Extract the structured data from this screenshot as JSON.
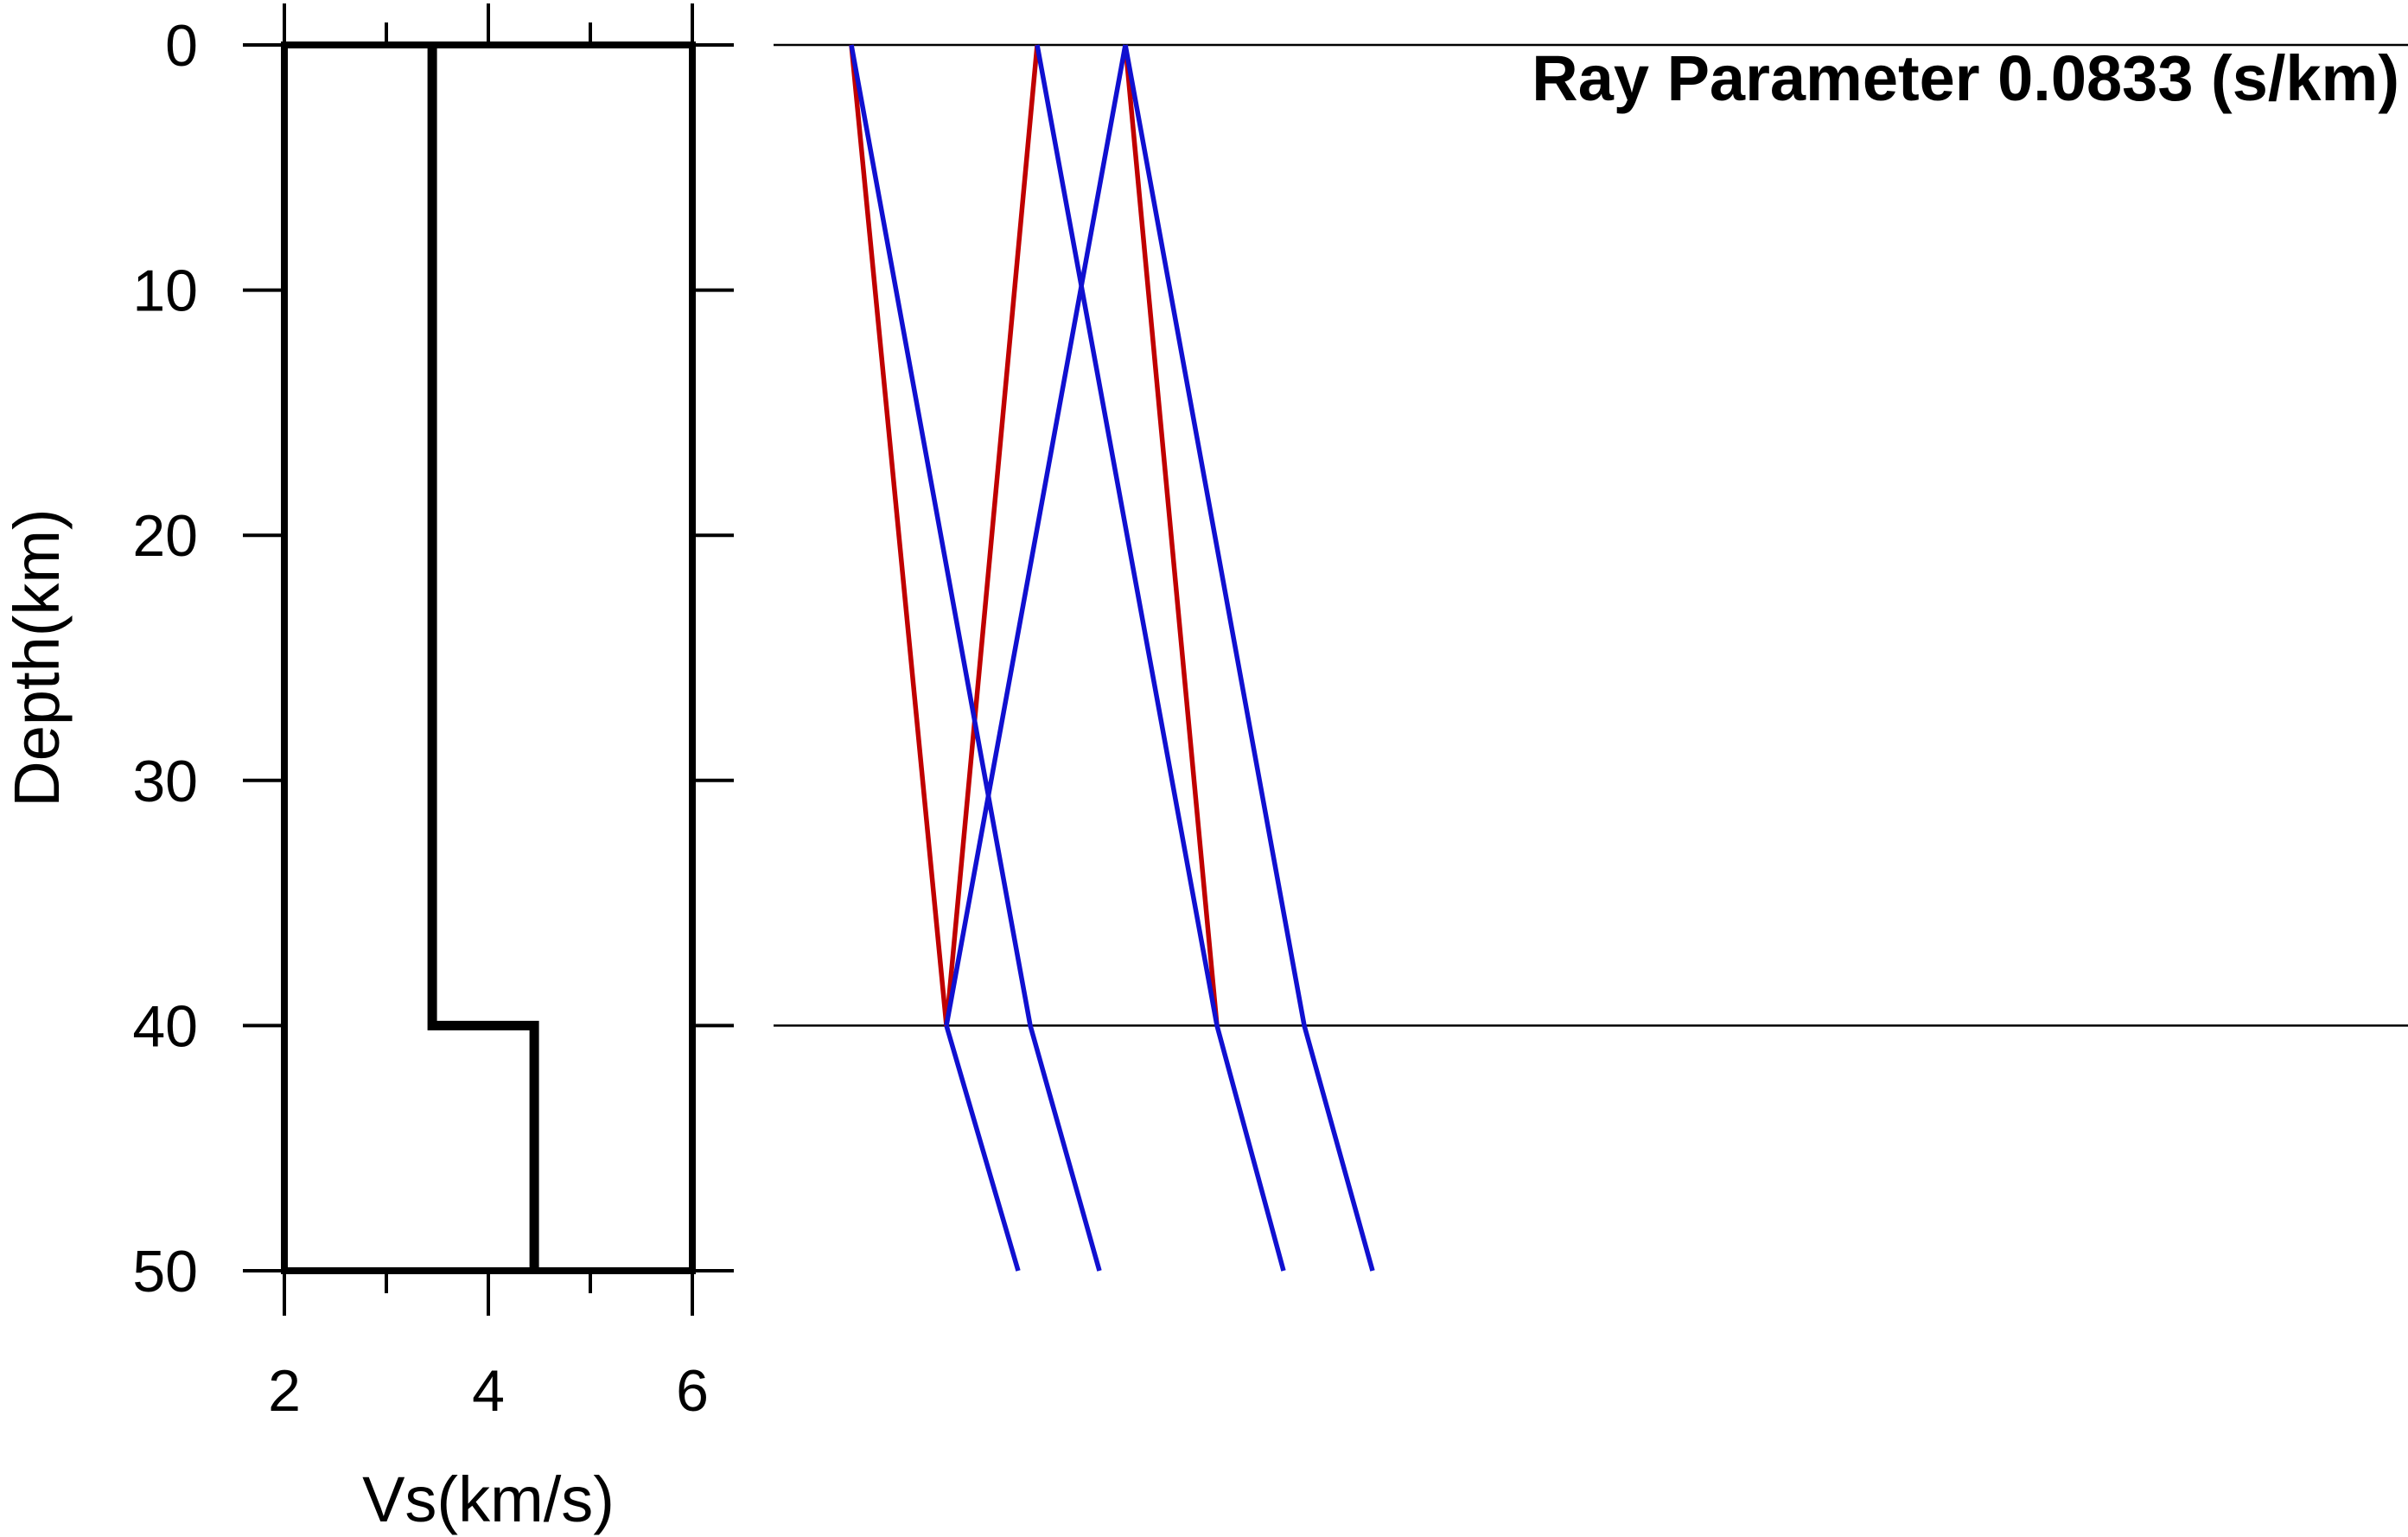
{
  "chart_data": [
    {
      "type": "line",
      "xlabel": "Vs(km/s)",
      "ylabel": "Depth(km)",
      "xlim": [
        2,
        6
      ],
      "ylim": [
        0,
        50
      ],
      "y_inverted": true,
      "x_ticks": [
        2,
        4,
        6
      ],
      "x_minor_ticks": [
        3,
        5
      ],
      "y_ticks": [
        0,
        10,
        20,
        30,
        40,
        50
      ],
      "frame_color": "#000000",
      "series": [
        {
          "color": "#000000",
          "points": [
            [
              3.45,
              0
            ],
            [
              3.45,
              40
            ],
            [
              4.45,
              40
            ],
            [
              4.45,
              50
            ]
          ]
        }
      ]
    },
    {
      "type": "line",
      "title": "Ray Parameter 0.0833 (s/km)",
      "ylim": [
        0,
        50
      ],
      "y_inverted": true,
      "interfaces": [
        0,
        40
      ],
      "interface_color": "#000000",
      "colors": {
        "p_ray": "#c00000",
        "s_ray": "#1010d0"
      },
      "series": [
        {
          "color": "#c00000",
          "points": [
            [
              0.985,
              0
            ],
            [
              1.095,
              40
            ],
            [
              1.2,
              0
            ]
          ]
        },
        {
          "color": "#c00000",
          "points": [
            [
              1.302,
              0
            ],
            [
              1.408,
              40
            ]
          ]
        },
        {
          "color": "#1010d0",
          "points": [
            [
              0.985,
              0
            ],
            [
              1.192,
              40
            ],
            [
              1.272,
              50
            ]
          ]
        },
        {
          "color": "#1010d0",
          "points": [
            [
              1.095,
              40
            ],
            [
              1.178,
              50
            ]
          ]
        },
        {
          "color": "#1010d0",
          "points": [
            [
              1.2,
              0
            ],
            [
              1.408,
              40
            ],
            [
              1.485,
              50
            ]
          ]
        },
        {
          "color": "#1010d0",
          "points": [
            [
              1.302,
              0
            ],
            [
              1.095,
              40
            ]
          ]
        },
        {
          "color": "#1010d0",
          "points": [
            [
              1.302,
              0
            ],
            [
              1.509,
              40
            ],
            [
              1.588,
              50
            ]
          ]
        }
      ]
    }
  ]
}
